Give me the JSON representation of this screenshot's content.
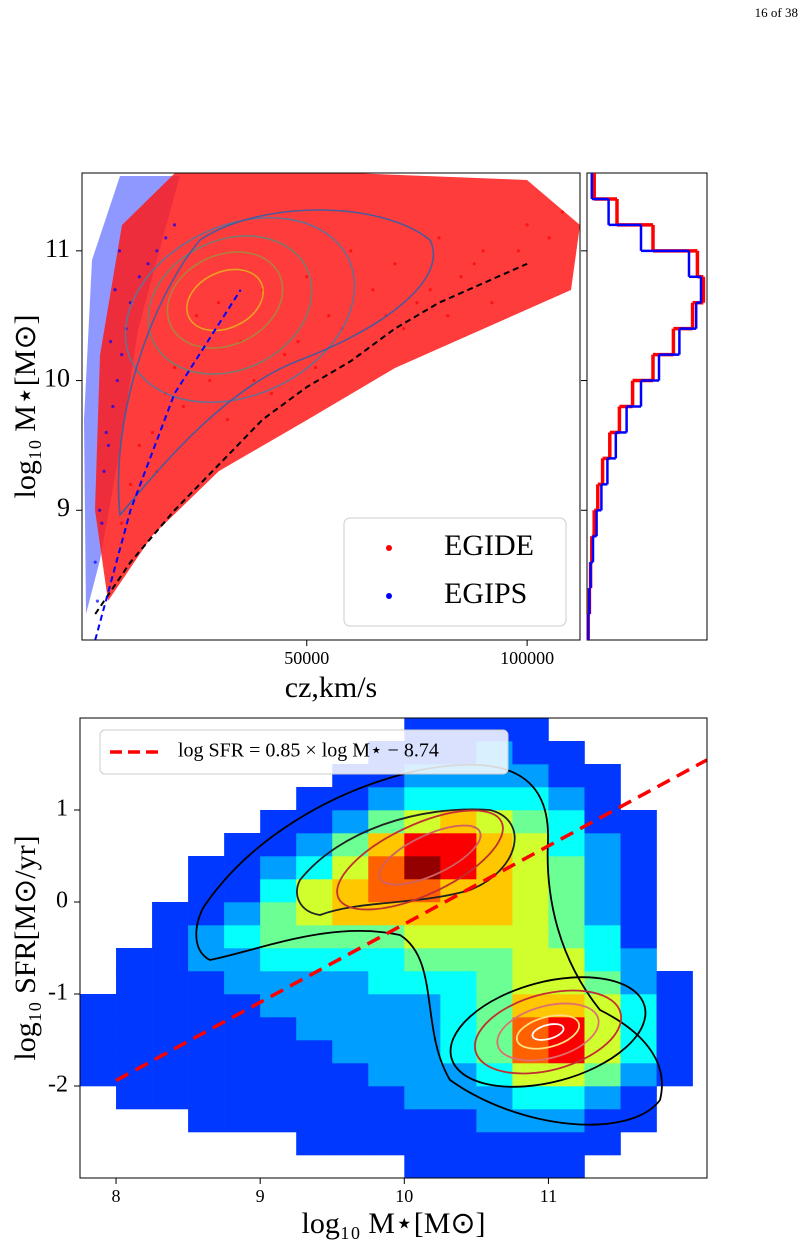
{
  "header": {
    "page": "16 of 38"
  },
  "chart_data": [
    {
      "type": "scatter",
      "xlabel": "cz,km/s",
      "ylabel": "log₁₀ M⋆[M⊙]",
      "xlim": [
        -1000,
        112000
      ],
      "ylim": [
        8.0,
        11.6
      ],
      "xticks": [
        50000,
        100000
      ],
      "yticks": [
        9,
        10,
        11
      ],
      "legend": "lower right",
      "series": [
        {
          "name": "EGIDE",
          "color": "#ff0000",
          "x": [
            30000,
            25000,
            40000,
            50000,
            35000,
            60000,
            45000,
            20000,
            15000,
            70000,
            80000,
            55000,
            65000,
            90000,
            100000,
            75000,
            85000,
            105000,
            10000,
            12000,
            18000,
            28000,
            38000,
            48000,
            58000,
            68000,
            78000,
            88000,
            98000,
            108000,
            22000,
            32000,
            42000,
            52000,
            62000,
            72000,
            82000,
            92000,
            8000,
            16000
          ],
          "values": [
            10.6,
            10.5,
            10.7,
            10.8,
            10.3,
            11.0,
            10.2,
            10.1,
            9.6,
            10.9,
            11.1,
            10.5,
            10.7,
            11.0,
            11.2,
            10.6,
            10.8,
            11.1,
            9.2,
            9.5,
            9.9,
            10.0,
            10.0,
            10.3,
            10.4,
            10.5,
            10.7,
            10.9,
            11.0,
            11.3,
            9.8,
            9.7,
            9.9,
            10.1,
            10.2,
            10.4,
            10.5,
            10.6,
            8.9,
            9.3
          ]
        },
        {
          "name": "EGIPS",
          "color": "#0000ff",
          "x": [
            2000,
            3000,
            4000,
            5000,
            6000,
            7000,
            8000,
            9000,
            10000,
            12000,
            14000,
            16000,
            18000,
            20000,
            3500,
            4500,
            5500,
            6500,
            7500,
            2500
          ],
          "values": [
            8.6,
            9.0,
            9.3,
            9.5,
            9.8,
            10.0,
            10.2,
            10.4,
            10.6,
            10.8,
            10.9,
            11.0,
            11.1,
            11.2,
            8.9,
            9.6,
            10.3,
            10.7,
            11.0,
            8.3
          ]
        }
      ],
      "lines": [
        {
          "color": "#000000",
          "style": "dashed",
          "x": [
            2000,
            10000,
            20000,
            30000,
            40000,
            50000,
            60000,
            70000,
            80000,
            90000,
            100000
          ],
          "values": [
            8.2,
            8.6,
            9.0,
            9.35,
            9.7,
            9.95,
            10.15,
            10.4,
            10.6,
            10.75,
            10.9
          ]
        },
        {
          "color": "#0000ff",
          "style": "dashed",
          "x": [
            2000,
            10000,
            20000,
            35000
          ],
          "values": [
            8.0,
            9.0,
            9.9,
            10.7
          ]
        }
      ]
    },
    {
      "type": "histogram",
      "orientation": "horizontal",
      "bins": [
        8.0,
        8.2,
        8.4,
        8.6,
        8.8,
        9.0,
        9.2,
        9.4,
        9.6,
        9.8,
        10.0,
        10.2,
        10.4,
        10.6,
        10.8,
        11.0,
        11.2,
        11.4,
        11.6
      ],
      "xlim": [
        0,
        1.0
      ],
      "ylim": [
        8.0,
        11.6
      ],
      "yticks": [
        9,
        10,
        11
      ],
      "series": [
        {
          "color": "#ff0000",
          "values": [
            0.01,
            0.02,
            0.03,
            0.04,
            0.06,
            0.09,
            0.13,
            0.19,
            0.27,
            0.38,
            0.55,
            0.72,
            0.88,
            0.97,
            0.92,
            0.55,
            0.25,
            0.06
          ]
        },
        {
          "color": "#0000ff",
          "values": [
            0.01,
            0.02,
            0.03,
            0.05,
            0.08,
            0.12,
            0.17,
            0.24,
            0.33,
            0.45,
            0.6,
            0.77,
            0.91,
            0.95,
            0.85,
            0.45,
            0.18,
            0.04
          ]
        }
      ]
    },
    {
      "type": "hist2d",
      "xlabel": "log₁₀ M⋆[M⊙]",
      "ylabel": "log₁₀ SFR[M⊙/yr]",
      "xlim": [
        7.75,
        12.1
      ],
      "ylim": [
        -3.0,
        2.0
      ],
      "xticks": [
        8,
        9,
        10,
        11
      ],
      "yticks": [
        -2,
        -1,
        0,
        1
      ],
      "colormap": "jet",
      "zlim": [
        0,
        9
      ],
      "xbins": [
        7.75,
        8.0,
        8.25,
        8.5,
        8.75,
        9.0,
        9.25,
        9.5,
        9.75,
        10.0,
        10.25,
        10.5,
        10.75,
        11.0,
        11.25,
        11.5,
        11.75,
        12.0
      ],
      "ybins": [
        -3.0,
        -2.75,
        -2.5,
        -2.25,
        -2.0,
        -1.75,
        -1.5,
        -1.25,
        -1.0,
        -0.75,
        -0.5,
        -0.25,
        0.0,
        0.25,
        0.5,
        0.75,
        1.0,
        1.25,
        1.5,
        1.75,
        2.0
      ],
      "counts": [
        [
          0,
          0,
          0,
          0,
          0,
          0,
          0,
          0,
          0,
          1,
          1,
          1,
          1,
          1,
          0,
          0,
          0
        ],
        [
          0,
          0,
          0,
          0,
          0,
          0,
          1,
          1,
          1,
          1,
          1,
          1,
          1,
          1,
          1,
          0,
          0
        ],
        [
          0,
          0,
          0,
          1,
          1,
          1,
          1,
          1,
          1,
          1,
          1,
          2,
          2,
          2,
          1,
          1,
          0
        ],
        [
          0,
          1,
          1,
          1,
          1,
          1,
          1,
          1,
          1,
          2,
          2,
          2,
          3,
          3,
          2,
          1,
          0
        ],
        [
          1,
          1,
          1,
          1,
          1,
          1,
          1,
          1,
          2,
          2,
          2,
          3,
          5,
          5,
          4,
          2,
          1
        ],
        [
          1,
          1,
          1,
          1,
          1,
          1,
          1,
          2,
          2,
          2,
          3,
          4,
          7,
          8,
          5,
          3,
          1
        ],
        [
          1,
          1,
          1,
          1,
          1,
          1,
          2,
          2,
          2,
          2,
          3,
          4,
          7,
          8,
          5,
          3,
          1
        ],
        [
          1,
          1,
          1,
          1,
          1,
          2,
          2,
          2,
          2,
          2,
          3,
          4,
          6,
          6,
          5,
          3,
          1
        ],
        [
          0,
          1,
          1,
          1,
          2,
          2,
          2,
          2,
          3,
          3,
          3,
          4,
          5,
          5,
          4,
          2,
          1
        ],
        [
          0,
          1,
          1,
          2,
          2,
          3,
          3,
          3,
          3,
          4,
          4,
          4,
          5,
          5,
          3,
          2,
          0
        ],
        [
          0,
          0,
          1,
          2,
          3,
          4,
          4,
          4,
          4,
          5,
          5,
          5,
          5,
          4,
          3,
          1,
          0
        ],
        [
          0,
          0,
          1,
          1,
          2,
          4,
          5,
          6,
          6,
          6,
          6,
          6,
          5,
          4,
          2,
          1,
          0
        ],
        [
          0,
          0,
          0,
          1,
          1,
          3,
          5,
          6,
          7,
          7,
          6,
          6,
          5,
          4,
          2,
          1,
          0
        ],
        [
          0,
          0,
          0,
          1,
          1,
          2,
          3,
          5,
          7,
          9,
          8,
          6,
          5,
          4,
          2,
          1,
          0
        ],
        [
          0,
          0,
          0,
          0,
          1,
          1,
          2,
          4,
          6,
          8,
          8,
          6,
          5,
          3,
          2,
          1,
          0
        ],
        [
          0,
          0,
          0,
          0,
          0,
          1,
          1,
          2,
          4,
          5,
          6,
          5,
          4,
          3,
          1,
          1,
          0
        ],
        [
          0,
          0,
          0,
          0,
          0,
          0,
          1,
          1,
          2,
          3,
          3,
          3,
          3,
          2,
          1,
          0,
          0
        ],
        [
          0,
          0,
          0,
          0,
          0,
          0,
          0,
          1,
          1,
          2,
          2,
          2,
          2,
          1,
          1,
          0,
          0
        ],
        [
          0,
          0,
          0,
          0,
          0,
          0,
          0,
          0,
          1,
          1,
          1,
          2,
          1,
          1,
          0,
          0,
          0
        ],
        [
          0,
          0,
          0,
          0,
          0,
          0,
          0,
          0,
          0,
          1,
          1,
          1,
          1,
          0,
          0,
          0,
          0
        ]
      ],
      "legend": "upper left",
      "series": [
        {
          "name": "log SFR = 0.85 × log M⋆ − 8.74",
          "color": "#ff0000",
          "style": "dashed",
          "x": [
            8.0,
            12.1
          ],
          "values": [
            -1.94,
            1.545
          ]
        }
      ]
    }
  ]
}
